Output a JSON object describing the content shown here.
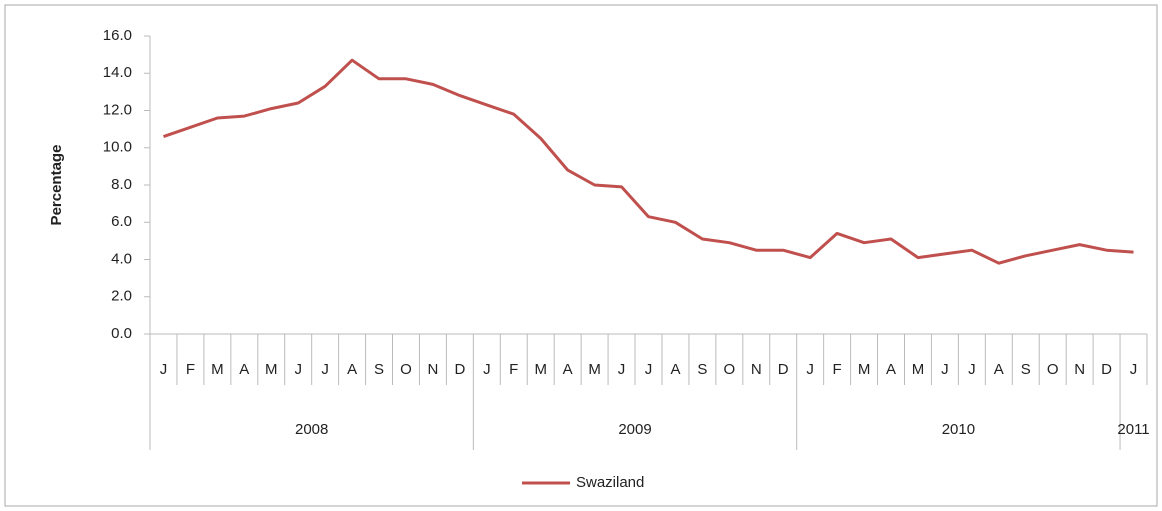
{
  "chart_data": {
    "type": "line",
    "y_label": "Percentage",
    "categories": [
      "J",
      "F",
      "M",
      "A",
      "M",
      "J",
      "J",
      "A",
      "S",
      "O",
      "N",
      "D",
      "J",
      "F",
      "M",
      "A",
      "M",
      "J",
      "J",
      "A",
      "S",
      "O",
      "N",
      "D",
      "J",
      "F",
      "M",
      "A",
      "M",
      "J",
      "J",
      "A",
      "S",
      "O",
      "N",
      "D",
      "J"
    ],
    "years": [
      "2008",
      "2009",
      "2010",
      "2011"
    ],
    "series": [
      {
        "name": "Swaziland",
        "color": "#c0504d",
        "values": [
          10.6,
          11.1,
          11.6,
          11.7,
          12.1,
          12.4,
          13.3,
          14.7,
          13.7,
          13.7,
          13.4,
          12.8,
          12.3,
          11.8,
          10.5,
          8.8,
          8.0,
          7.9,
          6.3,
          6.0,
          5.1,
          4.9,
          4.5,
          4.5,
          4.1,
          5.4,
          4.9,
          5.1,
          4.1,
          4.3,
          4.5,
          3.8,
          4.2,
          4.5,
          4.8,
          4.5,
          4.4
        ]
      }
    ],
    "ylim": [
      0,
      16
    ],
    "yticks": [
      {
        "value": 0,
        "label": "0.0"
      },
      {
        "value": 2,
        "label": "2.0"
      },
      {
        "value": 4,
        "label": "4.0"
      },
      {
        "value": 6,
        "label": "6.0"
      },
      {
        "value": 8,
        "label": "8.0"
      },
      {
        "value": 10,
        "label": "10.0"
      },
      {
        "value": 12,
        "label": "12.0"
      },
      {
        "value": 14,
        "label": "14.0"
      },
      {
        "value": 16,
        "label": "16.0"
      }
    ],
    "legend": "bottom"
  }
}
